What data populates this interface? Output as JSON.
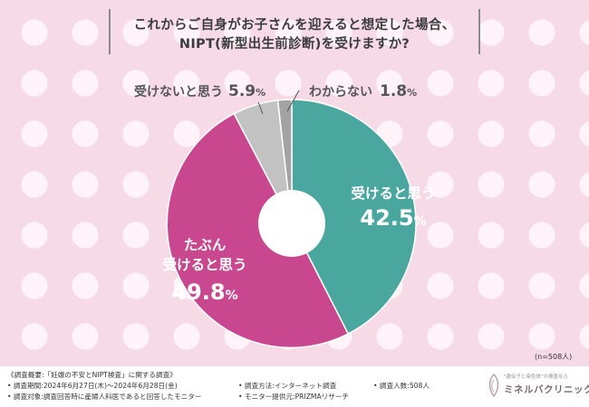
{
  "title": {
    "line1": "これからご自身がお子さんを迎えると想定した場合、",
    "line2": "NIPT(新型出生前診断)を受けますか?"
  },
  "chart_data": {
    "type": "pie",
    "donut": true,
    "categories": [
      "受けると思う",
      "たぶん受けると思う",
      "受けないと思う",
      "わからない"
    ],
    "values": [
      42.5,
      49.8,
      5.9,
      1.8
    ],
    "unit": "%",
    "colors": [
      "#4aa79f",
      "#c8478e",
      "#c2c2c2",
      "#a3a3a3"
    ],
    "labels": [
      {
        "text": "受けると思う",
        "value": "42.5"
      },
      {
        "text": "たぶん受けると思う",
        "line1": "たぶん",
        "line2": "受けると思う",
        "value": "49.8"
      },
      {
        "text": "受けないと思う",
        "value": "5.9"
      },
      {
        "text": "わからない",
        "value": "1.8"
      }
    ]
  },
  "n_label": "(n=508人)",
  "footer": {
    "overview": "《調査概要:「妊娠の不安とNIPT検査」に関する調査》",
    "period": "• 調査期間:2024年6月27日(木)～2024年6月28日(金)",
    "method": "• 調査方法:インターネット調査",
    "count": "• 調査人数:508人",
    "target": "• 調査対象:調査回答時に産婦人科医であると回答したモニター",
    "provider": "• モニター提供元:PRIZMAリサーチ"
  },
  "logo": {
    "subtitle": "\"遺伝子と染色体\"の検査なら",
    "name": "ミネルバクリニック"
  }
}
